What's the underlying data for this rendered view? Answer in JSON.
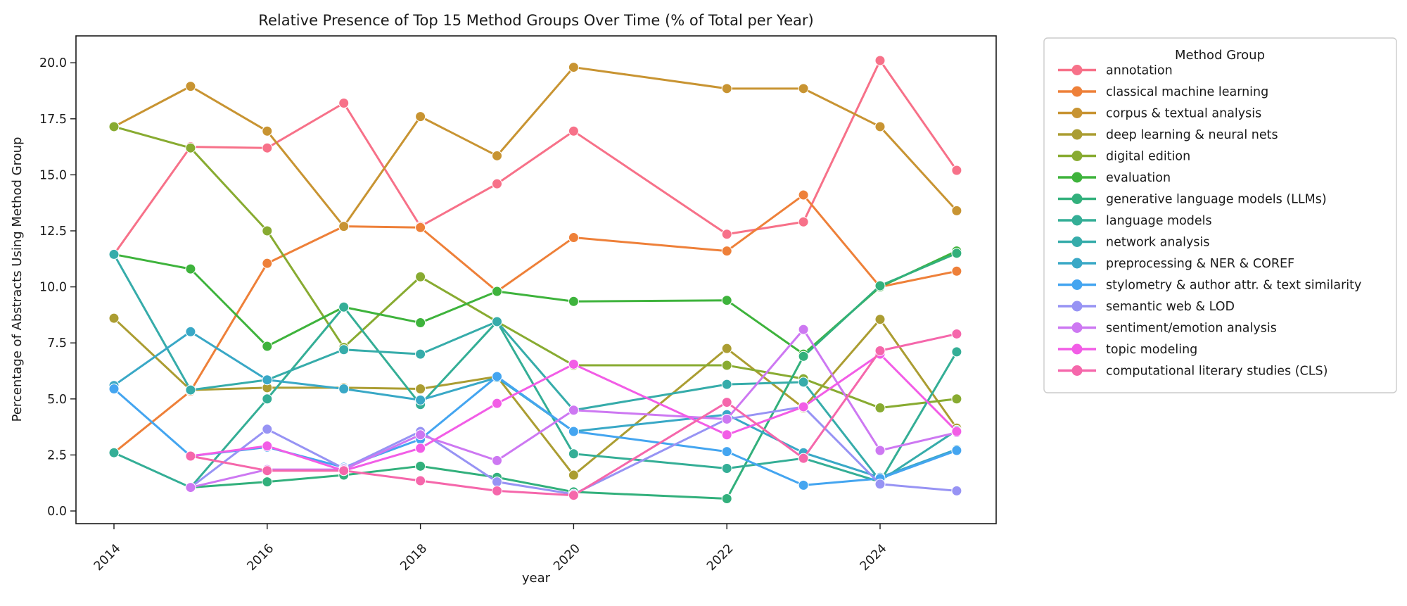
{
  "chart_data": {
    "type": "line",
    "title": "Relative Presence of Top 15 Method Groups Over Time (% of Total per Year)",
    "xlabel": "year",
    "ylabel": "Percentage of Abstracts Using Method Group",
    "legend_title": "Method Group",
    "legend_position": "outside-right",
    "grid": false,
    "marker": "circle",
    "x": [
      2014,
      2015,
      2016,
      2017,
      2018,
      2019,
      2020,
      2022,
      2023,
      2024,
      2025
    ],
    "x_tick_labels": [
      "2014",
      "2016",
      "2018",
      "2020",
      "2022",
      "2024"
    ],
    "y_tick_labels": [
      "0.0",
      "2.5",
      "5.0",
      "7.5",
      "10.0",
      "12.5",
      "15.0",
      "17.5",
      "20.0"
    ],
    "xlim": [
      2013.5,
      2025.5
    ],
    "ylim": [
      -0.6,
      21.2
    ],
    "series": [
      {
        "name": "annotation",
        "color": "#f77189",
        "values": [
          11.45,
          16.25,
          16.2,
          18.2,
          12.7,
          14.6,
          16.95,
          12.35,
          12.9,
          20.1,
          15.2
        ]
      },
      {
        "name": "classical machine learning",
        "color": "#ee8039",
        "values": [
          2.6,
          5.35,
          11.05,
          12.7,
          12.65,
          9.8,
          12.2,
          11.6,
          14.1,
          10.0,
          10.7
        ]
      },
      {
        "name": "corpus & textual analysis",
        "color": "#c89432",
        "values": [
          17.15,
          18.95,
          16.95,
          12.7,
          17.6,
          15.85,
          19.8,
          18.85,
          18.85,
          17.15,
          13.4
        ]
      },
      {
        "name": "deep learning & neural nets",
        "color": "#ab9d32",
        "values": [
          8.6,
          5.4,
          5.5,
          5.5,
          5.45,
          6.0,
          1.6,
          7.25,
          4.6,
          8.55,
          3.7
        ]
      },
      {
        "name": "digital edition",
        "color": "#88ab31",
        "values": [
          17.15,
          16.2,
          12.5,
          7.3,
          10.45,
          8.45,
          6.5,
          6.5,
          5.9,
          4.6,
          5.0
        ]
      },
      {
        "name": "evaluation",
        "color": "#3eb33c",
        "values": [
          11.45,
          10.8,
          7.35,
          9.1,
          8.4,
          9.8,
          9.35,
          9.4,
          7.0,
          10.0,
          11.6
        ]
      },
      {
        "name": "generative language models (LLMs)",
        "color": "#32b07c",
        "values": [
          null,
          1.05,
          1.3,
          1.6,
          2.0,
          1.5,
          0.85,
          0.55,
          6.9,
          10.05,
          11.5
        ]
      },
      {
        "name": "language models",
        "color": "#34ae96",
        "values": [
          2.6,
          1.05,
          5.0,
          9.1,
          4.75,
          8.45,
          2.55,
          1.9,
          2.35,
          1.3,
          7.1
        ]
      },
      {
        "name": "network analysis",
        "color": "#36acaa",
        "values": [
          11.45,
          5.4,
          5.85,
          7.2,
          7.0,
          8.45,
          4.5,
          5.65,
          5.75,
          1.35,
          3.6
        ]
      },
      {
        "name": "preprocessing & NER & COREF",
        "color": "#39a8c6",
        "values": [
          5.6,
          8.0,
          5.85,
          5.45,
          4.95,
          5.95,
          3.55,
          4.3,
          2.6,
          1.5,
          2.75
        ]
      },
      {
        "name": "stylometry & author attr. & text similarity",
        "color": "#44a5f0",
        "values": [
          5.45,
          2.45,
          2.85,
          1.95,
          3.2,
          6.0,
          3.55,
          2.65,
          1.15,
          1.45,
          2.7
        ]
      },
      {
        "name": "semantic web & LOD",
        "color": "#9793f4",
        "values": [
          null,
          1.05,
          3.65,
          1.9,
          3.55,
          1.3,
          0.75,
          4.1,
          4.65,
          1.2,
          0.9
        ]
      },
      {
        "name": "sentiment/emotion analysis",
        "color": "#cd78f2",
        "values": [
          null,
          1.05,
          1.85,
          1.85,
          3.4,
          2.25,
          4.5,
          4.1,
          8.1,
          2.7,
          3.5
        ]
      },
      {
        "name": "topic modeling",
        "color": "#f25de6",
        "values": [
          null,
          2.45,
          2.9,
          1.8,
          2.8,
          4.8,
          6.55,
          3.4,
          4.65,
          7.0,
          3.55
        ]
      },
      {
        "name": "computational literary studies (CLS)",
        "color": "#f567ab",
        "values": [
          null,
          2.45,
          1.8,
          1.8,
          1.35,
          0.9,
          0.7,
          4.85,
          2.35,
          7.15,
          7.9
        ]
      }
    ]
  }
}
